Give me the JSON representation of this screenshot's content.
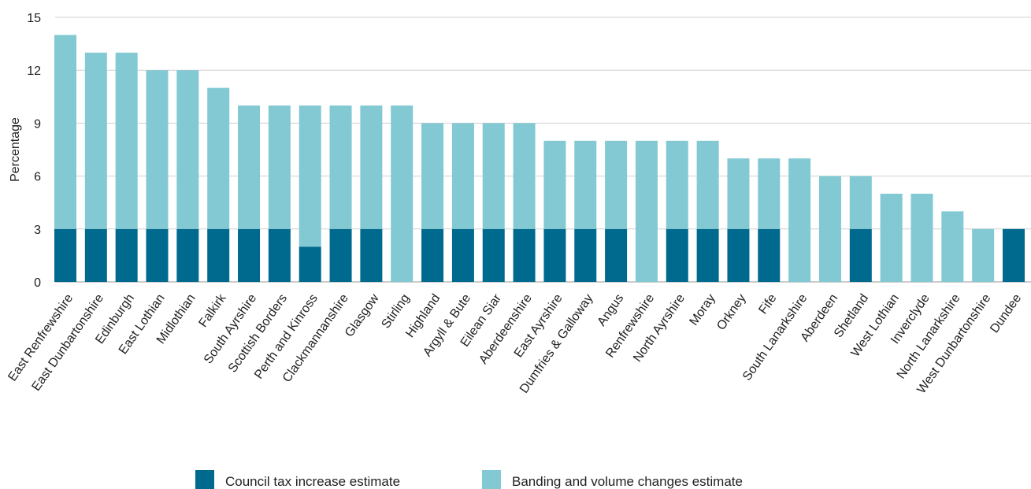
{
  "chart_data": {
    "type": "bar",
    "stacked": true,
    "title": "",
    "xlabel": "",
    "ylabel": "Percentage",
    "ylim": [
      0,
      15
    ],
    "yticks": [
      0,
      3,
      6,
      9,
      12,
      15
    ],
    "grid": true,
    "legend_position": "bottom",
    "categories": [
      "East Renfrewshire",
      "East Dunbartonshire",
      "Edinburgh",
      "East Lothian",
      "Midlothian",
      "Falkirk",
      "South Ayrshire",
      "Scottish Borders",
      "Perth and Kinross",
      "Clackmannanshire",
      "Glasgow",
      "Stirling",
      "Highland",
      "Argyll & Bute",
      "Eilean Siar",
      "Aberdeenshire",
      "East Ayrshire",
      "Dumfries & Galloway",
      "Angus",
      "Renfrewshire",
      "North Ayrshire",
      "Moray",
      "Orkney",
      "Fife",
      "South Lanarkshire",
      "Aberdeen",
      "Shetland",
      "West Lothian",
      "Inverclyde",
      "North Lanarkshire",
      "West Dunbartonshire",
      "Dundee"
    ],
    "series": [
      {
        "name": "Council tax increase estimate",
        "color": "#006a8e",
        "values": [
          3,
          3,
          3,
          3,
          3,
          3,
          3,
          3,
          2,
          3,
          3,
          0,
          3,
          3,
          3,
          3,
          3,
          3,
          3,
          0,
          3,
          3,
          3,
          3,
          0,
          0,
          3,
          0,
          0,
          0,
          0,
          3
        ]
      },
      {
        "name": "Banding and volume changes estimate",
        "color": "#82c9d3",
        "values": [
          11,
          10,
          10,
          9,
          9,
          8,
          7,
          7,
          8,
          7,
          7,
          10,
          6,
          6,
          6,
          6,
          5,
          5,
          5,
          8,
          5,
          5,
          4,
          4,
          7,
          6,
          3,
          5,
          5,
          4,
          3,
          0
        ]
      }
    ]
  }
}
